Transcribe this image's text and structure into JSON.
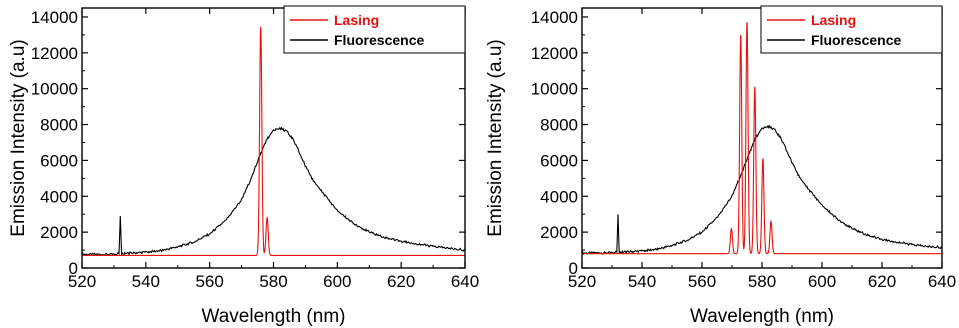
{
  "chart_data": [
    {
      "type": "line",
      "title": "",
      "xlabel": "Wavelength (nm)",
      "ylabel": "Emission Intensity (a.u)",
      "xlim": [
        520,
        640
      ],
      "ylim": [
        0,
        14500
      ],
      "xticks": [
        520,
        540,
        560,
        580,
        600,
        620,
        640
      ],
      "yticks": [
        0,
        2000,
        4000,
        6000,
        8000,
        10000,
        12000,
        14000
      ],
      "legend": "top-right",
      "series": [
        {
          "name": "Lasing",
          "color": "#e8100c",
          "baseline": 700,
          "peaks": [
            {
              "x": 576.0,
              "y": 13450,
              "w": 0.35
            },
            {
              "x": 578.0,
              "y": 2800,
              "w": 0.35
            }
          ]
        },
        {
          "name": "Fluorescence",
          "color": "#000000",
          "points": [
            [
              520,
              760
            ],
            [
              530,
              760
            ],
            [
              531.6,
              800
            ],
            [
              532,
              2900
            ],
            [
              532.4,
              800
            ],
            [
              535,
              830
            ],
            [
              540,
              880
            ],
            [
              545,
              980
            ],
            [
              550,
              1180
            ],
            [
              555,
              1450
            ],
            [
              560,
              1900
            ],
            [
              565,
              2650
            ],
            [
              570,
              3800
            ],
            [
              573,
              5000
            ],
            [
              576,
              6400
            ],
            [
              578,
              7200
            ],
            [
              580,
              7650
            ],
            [
              582,
              7800
            ],
            [
              584,
              7650
            ],
            [
              586,
              7200
            ],
            [
              588,
              6500
            ],
            [
              590,
              5700
            ],
            [
              592,
              5000
            ],
            [
              595,
              4300
            ],
            [
              600,
              3200
            ],
            [
              605,
              2500
            ],
            [
              610,
              2000
            ],
            [
              615,
              1700
            ],
            [
              620,
              1500
            ],
            [
              625,
              1350
            ],
            [
              630,
              1200
            ],
            [
              635,
              1100
            ],
            [
              640,
              1000
            ]
          ]
        }
      ]
    },
    {
      "type": "line",
      "title": "",
      "xlabel": "Wavelength (nm)",
      "ylabel": "Emission Intensity (a.u)",
      "xlim": [
        520,
        640
      ],
      "ylim": [
        0,
        14500
      ],
      "xticks": [
        520,
        540,
        560,
        580,
        600,
        620,
        640
      ],
      "yticks": [
        0,
        2000,
        4000,
        6000,
        8000,
        10000,
        12000,
        14000
      ],
      "legend": "top-right",
      "series": [
        {
          "name": "Lasing",
          "color": "#e8100c",
          "baseline": 800,
          "peaks": [
            {
              "x": 569.8,
              "y": 2200,
              "w": 0.35
            },
            {
              "x": 572.9,
              "y": 13000,
              "w": 0.35
            },
            {
              "x": 575.0,
              "y": 13700,
              "w": 0.35
            },
            {
              "x": 577.6,
              "y": 10100,
              "w": 0.35
            },
            {
              "x": 580.3,
              "y": 6100,
              "w": 0.35
            },
            {
              "x": 583.0,
              "y": 2600,
              "w": 0.35
            }
          ]
        },
        {
          "name": "Fluorescence",
          "color": "#000000",
          "points": [
            [
              520,
              830
            ],
            [
              530,
              850
            ],
            [
              531.6,
              880
            ],
            [
              532,
              3000
            ],
            [
              532.4,
              880
            ],
            [
              535,
              900
            ],
            [
              540,
              950
            ],
            [
              545,
              1050
            ],
            [
              550,
              1250
            ],
            [
              555,
              1550
            ],
            [
              560,
              2000
            ],
            [
              565,
              2800
            ],
            [
              570,
              4000
            ],
            [
              573,
              5200
            ],
            [
              576,
              6500
            ],
            [
              578,
              7300
            ],
            [
              580,
              7750
            ],
            [
              582,
              7900
            ],
            [
              584,
              7750
            ],
            [
              586,
              7300
            ],
            [
              588,
              6650
            ],
            [
              590,
              5900
            ],
            [
              592,
              5200
            ],
            [
              595,
              4500
            ],
            [
              600,
              3500
            ],
            [
              605,
              2750
            ],
            [
              610,
              2200
            ],
            [
              615,
              1850
            ],
            [
              620,
              1600
            ],
            [
              625,
              1450
            ],
            [
              630,
              1300
            ],
            [
              635,
              1200
            ],
            [
              640,
              1150
            ]
          ]
        }
      ]
    }
  ]
}
